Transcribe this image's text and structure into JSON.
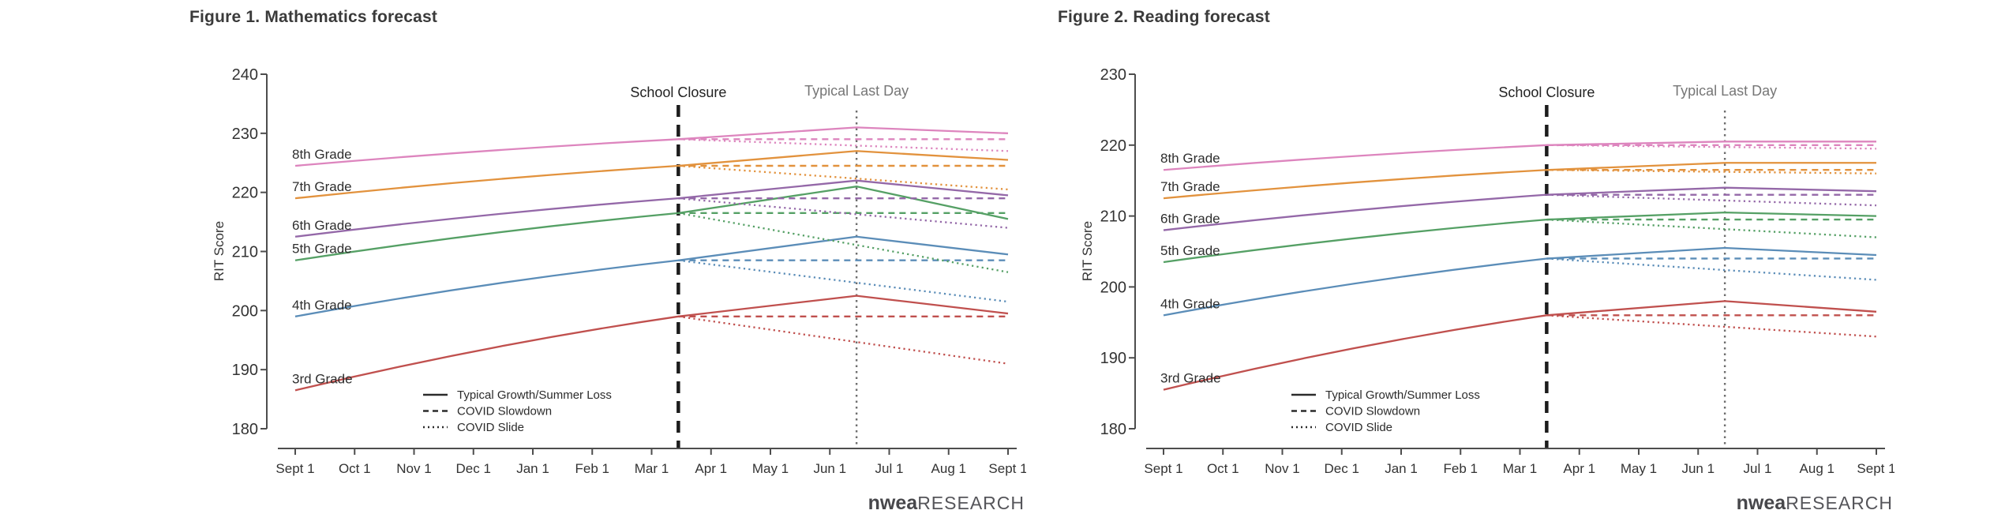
{
  "page": {
    "background": "#ffffff"
  },
  "chart_data": [
    {
      "type": "line",
      "title": "Figure 1. Mathematics forecast",
      "ylabel": "RIT Score",
      "ylim": [
        180,
        240
      ],
      "ytick_step": 10,
      "grid": false,
      "x": [
        "Sept 1",
        "Oct 1",
        "Nov 1",
        "Dec 1",
        "Jan 1",
        "Feb 1",
        "Mar 1",
        "Apr 1",
        "May 1",
        "Jun 1",
        "Jul 1",
        "Aug 1",
        "Sept 1"
      ],
      "events": {
        "school_closure": {
          "label": "School Closure",
          "x": 6.45,
          "line_color": "#1c1c1c"
        },
        "typical_last_day": {
          "label": "Typical Last Day",
          "x": 9.45,
          "line_color": "#6e6e6e"
        }
      },
      "legend": [
        {
          "label": "Typical Growth/Summer Loss",
          "style": "solid"
        },
        {
          "label": "COVID Slowdown",
          "style": "dashed"
        },
        {
          "label": "COVID Slide",
          "style": "dotted"
        }
      ],
      "series": [
        {
          "name": "3rd Grade",
          "color": "#c0504e",
          "sept1_start": 186.5,
          "at_school_closure": 199,
          "typical_peak_last_day": 202.5,
          "sept1_end_typical": 199.5,
          "sept1_end_covid_slowdown": 199,
          "sept1_end_covid_slide": 191
        },
        {
          "name": "4th Grade",
          "color": "#5b8db8",
          "sept1_start": 199,
          "at_school_closure": 208.5,
          "typical_peak_last_day": 212.5,
          "sept1_end_typical": 209.5,
          "sept1_end_covid_slowdown": 208.5,
          "sept1_end_covid_slide": 201.5
        },
        {
          "name": "5th Grade",
          "color": "#55a065",
          "sept1_start": 208.5,
          "at_school_closure": 216.5,
          "typical_peak_last_day": 221,
          "sept1_end_typical": 215.5,
          "sept1_end_covid_slowdown": 216.5,
          "sept1_end_covid_slide": 206.5
        },
        {
          "name": "6th Grade",
          "color": "#9468a8",
          "sept1_start": 212.5,
          "at_school_closure": 219,
          "typical_peak_last_day": 222,
          "sept1_end_typical": 219.5,
          "sept1_end_covid_slowdown": 219,
          "sept1_end_covid_slide": 214
        },
        {
          "name": "7th Grade",
          "color": "#e2923d",
          "sept1_start": 219,
          "at_school_closure": 224.5,
          "typical_peak_last_day": 227,
          "sept1_end_typical": 225.5,
          "sept1_end_covid_slowdown": 224.5,
          "sept1_end_covid_slide": 220.5
        },
        {
          "name": "8th Grade",
          "color": "#dd85be",
          "sept1_start": 224.5,
          "at_school_closure": 229,
          "typical_peak_last_day": 231,
          "sept1_end_typical": 230,
          "sept1_end_covid_slowdown": 229,
          "sept1_end_covid_slide": 227
        }
      ],
      "logo": {
        "brand": "nwea",
        "suffix": "RESEARCH"
      }
    },
    {
      "type": "line",
      "title": "Figure 2. Reading forecast",
      "ylabel": "RIT Score",
      "ylim": [
        180,
        230
      ],
      "ytick_step": 10,
      "grid": false,
      "x": [
        "Sept 1",
        "Oct 1",
        "Nov 1",
        "Dec 1",
        "Jan 1",
        "Feb 1",
        "Mar 1",
        "Apr 1",
        "May 1",
        "Jun 1",
        "Jul 1",
        "Aug 1",
        "Sept 1"
      ],
      "events": {
        "school_closure": {
          "label": "School Closure",
          "x": 6.45,
          "line_color": "#1c1c1c"
        },
        "typical_last_day": {
          "label": "Typical Last Day",
          "x": 9.45,
          "line_color": "#6e6e6e"
        }
      },
      "legend": [
        {
          "label": "Typical Growth/Summer Loss",
          "style": "solid"
        },
        {
          "label": "COVID Slowdown",
          "style": "dashed"
        },
        {
          "label": "COVID Slide",
          "style": "dotted"
        }
      ],
      "series": [
        {
          "name": "3rd Grade",
          "color": "#c0504e",
          "sept1_start": 185.5,
          "at_school_closure": 196,
          "typical_peak_last_day": 198,
          "sept1_end_typical": 196.5,
          "sept1_end_covid_slowdown": 196,
          "sept1_end_covid_slide": 193
        },
        {
          "name": "4th Grade",
          "color": "#5b8db8",
          "sept1_start": 196,
          "at_school_closure": 204,
          "typical_peak_last_day": 205.5,
          "sept1_end_typical": 204.5,
          "sept1_end_covid_slowdown": 204,
          "sept1_end_covid_slide": 201
        },
        {
          "name": "5th Grade",
          "color": "#55a065",
          "sept1_start": 203.5,
          "at_school_closure": 209.5,
          "typical_peak_last_day": 210.5,
          "sept1_end_typical": 210,
          "sept1_end_covid_slowdown": 209.5,
          "sept1_end_covid_slide": 207
        },
        {
          "name": "6th Grade",
          "color": "#9468a8",
          "sept1_start": 208,
          "at_school_closure": 213,
          "typical_peak_last_day": 214,
          "sept1_end_typical": 213.5,
          "sept1_end_covid_slowdown": 213,
          "sept1_end_covid_slide": 211.5
        },
        {
          "name": "7th Grade",
          "color": "#e2923d",
          "sept1_start": 212.5,
          "at_school_closure": 216.5,
          "typical_peak_last_day": 217.5,
          "sept1_end_typical": 217.5,
          "sept1_end_covid_slowdown": 216.5,
          "sept1_end_covid_slide": 216
        },
        {
          "name": "8th Grade",
          "color": "#dd85be",
          "sept1_start": 216.5,
          "at_school_closure": 220,
          "typical_peak_last_day": 220.5,
          "sept1_end_typical": 220.5,
          "sept1_end_covid_slowdown": 220,
          "sept1_end_covid_slide": 219.5
        }
      ],
      "logo": {
        "brand": "nwea",
        "suffix": "RESEARCH"
      }
    }
  ]
}
